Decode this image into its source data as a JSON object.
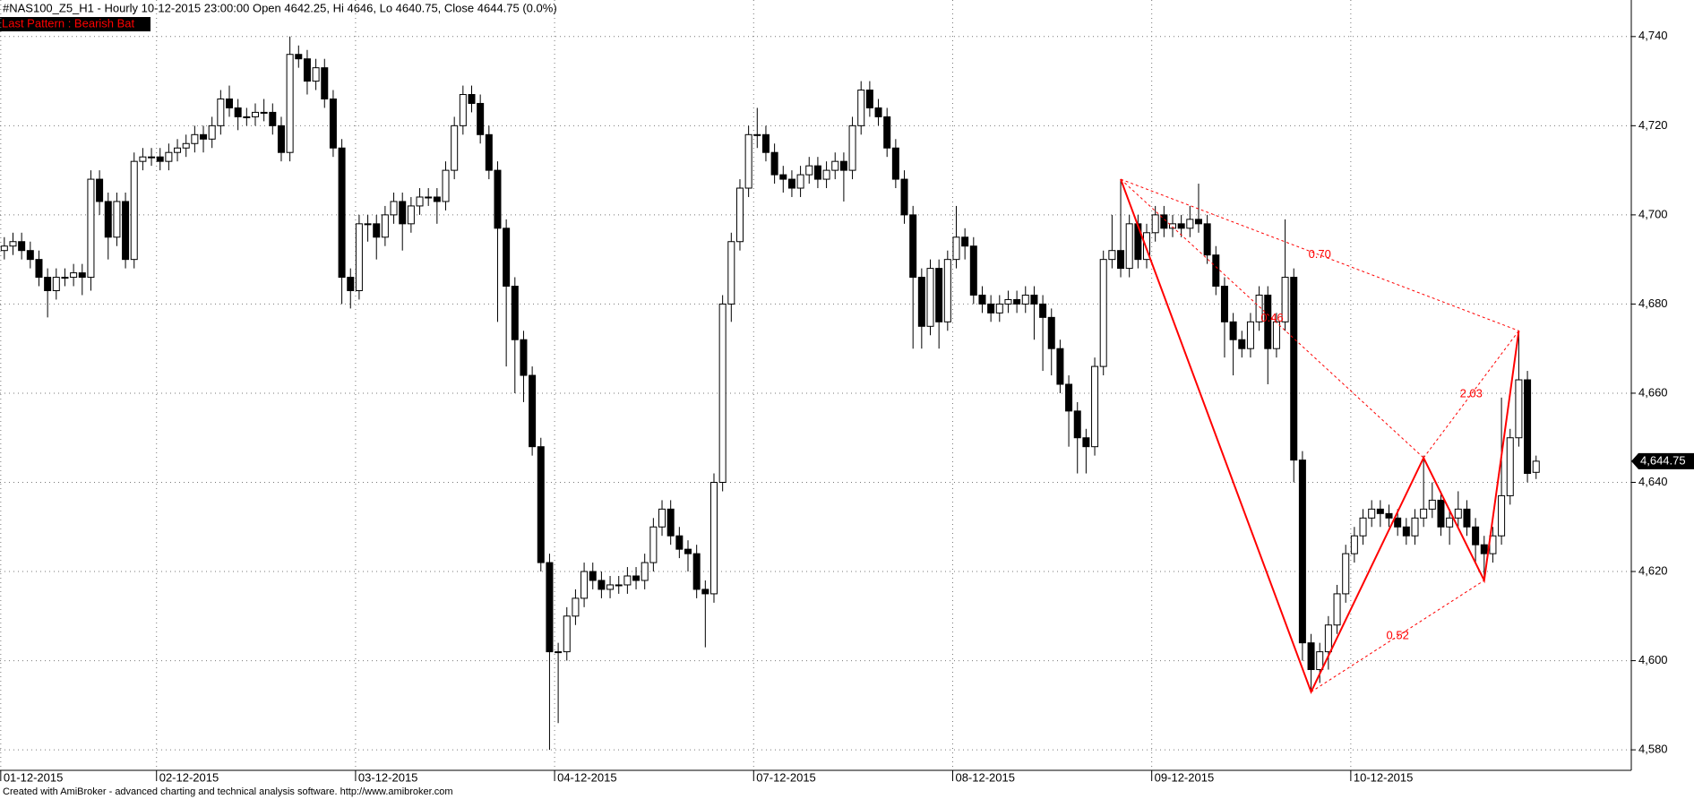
{
  "chart_data": {
    "type": "candlestick",
    "title": "#NAS100_Z5_H1 - Hourly 10-12-2015 23:00:00 Open 4642.25, Hi 4646, Lo 4640.75, Close 4644.75 (0.0%)",
    "pattern_label": "Last Pattern : Bearish Bat",
    "footer": "Created with AmiBroker - advanced charting and technical analysis software. http://www.amibroker.com",
    "open": [
      4692,
      4693,
      4694,
      4692,
      4690,
      4686,
      4683,
      4686,
      4686,
      4687,
      4686,
      4708,
      4703,
      4695,
      4703,
      4690,
      4712,
      4713,
      4713,
      4712,
      4714,
      4715,
      4716,
      4718,
      4717,
      4720,
      4726,
      4724,
      4722,
      4722,
      4723,
      4723,
      4720,
      4714,
      4736,
      4735,
      4730,
      4733,
      4726,
      4715,
      4686,
      4683,
      4698,
      4698,
      4695,
      4700,
      4703,
      4698,
      4702,
      4704,
      4704,
      4703,
      4710,
      4720,
      4727,
      4725,
      4718,
      4710,
      4697,
      4684,
      4672,
      4664,
      4648,
      4622,
      4602,
      4602,
      4610,
      4614,
      4620,
      4618,
      4616,
      4617,
      4617,
      4619,
      4618,
      4622,
      4630,
      4634,
      4628,
      4625,
      4624,
      4616,
      4615,
      4640,
      4680,
      4694,
      4706,
      4718,
      4718,
      4714,
      4709,
      4708,
      4706,
      4709,
      4711,
      4708,
      4710,
      4712,
      4710,
      4720,
      4728,
      4724,
      4722,
      4715,
      4708,
      4700,
      4686,
      4675,
      4688,
      4676,
      4690,
      4695,
      4693,
      4682,
      4680,
      4678,
      4680,
      4681,
      4680,
      4682,
      4680,
      4677,
      4670,
      4662,
      4656,
      4650,
      4648,
      4666,
      4690,
      4692,
      4688,
      4698,
      4690,
      4696,
      4700,
      4697,
      4698,
      4697,
      4699,
      4698,
      4691,
      4684,
      4676,
      4672,
      4670,
      4676,
      4682,
      4670,
      4676,
      4686,
      4645,
      4604,
      4598,
      4602,
      4608,
      4615,
      4624,
      4628,
      4632,
      4634,
      4633,
      4632,
      4630,
      4628,
      4632,
      4634,
      4636,
      4630,
      4632,
      4634,
      4630,
      4626,
      4624,
      4628,
      4637,
      4650,
      4663,
      4642.25
    ],
    "high": [
      4695,
      4696,
      4696,
      4694,
      4692,
      4688,
      4688,
      4688,
      4689,
      4689,
      4710,
      4710,
      4705,
      4705,
      4705,
      4714,
      4715,
      4715,
      4715,
      4716,
      4717,
      4718,
      4720,
      4720,
      4722,
      4728,
      4729,
      4726,
      4724,
      4725,
      4726,
      4725,
      4722,
      4740,
      4738,
      4737,
      4735,
      4735,
      4728,
      4717,
      4688,
      4700,
      4700,
      4700,
      4702,
      4705,
      4705,
      4704,
      4706,
      4706,
      4706,
      4712,
      4722,
      4729,
      4729,
      4727,
      4720,
      4712,
      4699,
      4686,
      4674,
      4666,
      4650,
      4624,
      4604,
      4612,
      4616,
      4622,
      4622,
      4620,
      4619,
      4619,
      4621,
      4621,
      4624,
      4632,
      4636,
      4636,
      4630,
      4627,
      4626,
      4618,
      4642,
      4682,
      4696,
      4708,
      4720,
      4724,
      4720,
      4716,
      4711,
      4710,
      4711,
      4713,
      4713,
      4712,
      4714,
      4714,
      4722,
      4730,
      4730,
      4726,
      4724,
      4717,
      4710,
      4702,
      4688,
      4690,
      4690,
      4692,
      4702,
      4697,
      4695,
      4684,
      4682,
      4682,
      4683,
      4683,
      4684,
      4684,
      4682,
      4679,
      4672,
      4664,
      4658,
      4652,
      4668,
      4692,
      4700,
      4708,
      4700,
      4700,
      4698,
      4702,
      4702,
      4700,
      4700,
      4702,
      4707,
      4700,
      4693,
      4686,
      4678,
      4674,
      4678,
      4684,
      4684,
      4678,
      4699,
      4688,
      4647,
      4606,
      4604,
      4610,
      4617,
      4626,
      4630,
      4634,
      4636,
      4636,
      4635,
      4634,
      4632,
      4634,
      4646,
      4640,
      4638,
      4634,
      4638,
      4636,
      4632,
      4628,
      4630,
      4659,
      4652,
      4674,
      4665,
      4646
    ],
    "low": [
      4690,
      4691,
      4690,
      4688,
      4684,
      4677,
      4681,
      4684,
      4684,
      4682,
      4683,
      4700,
      4690,
      4693,
      4688,
      4688,
      4710,
      4711,
      4710,
      4710,
      4712,
      4713,
      4714,
      4714,
      4715,
      4718,
      4722,
      4719,
      4720,
      4720,
      4721,
      4718,
      4712,
      4712,
      4733,
      4727,
      4728,
      4724,
      4713,
      4680,
      4679,
      4681,
      4694,
      4690,
      4693,
      4698,
      4692,
      4696,
      4700,
      4702,
      4698,
      4701,
      4708,
      4718,
      4723,
      4716,
      4708,
      4676,
      4666,
      4660,
      4658,
      4646,
      4620,
      4580,
      4586,
      4600,
      4608,
      4612,
      4616,
      4614,
      4614,
      4615,
      4615,
      4616,
      4616,
      4620,
      4628,
      4626,
      4623,
      4620,
      4614,
      4603,
      4613,
      4638,
      4676,
      4692,
      4704,
      4715,
      4712,
      4707,
      4705,
      4704,
      4704,
      4707,
      4706,
      4706,
      4708,
      4703,
      4708,
      4718,
      4722,
      4720,
      4713,
      4706,
      4698,
      4670,
      4670,
      4673,
      4670,
      4674,
      4688,
      4690,
      4680,
      4678,
      4676,
      4676,
      4678,
      4678,
      4678,
      4672,
      4665,
      4664,
      4660,
      4648,
      4642,
      4642,
      4646,
      4664,
      4688,
      4686,
      4686,
      4688,
      4688,
      4694,
      4695,
      4695,
      4695,
      4695,
      4696,
      4689,
      4682,
      4668,
      4664,
      4668,
      4668,
      4674,
      4662,
      4668,
      4674,
      4640,
      4600,
      4593,
      4595,
      4598,
      4606,
      4613,
      4622,
      4626,
      4630,
      4630,
      4630,
      4628,
      4626,
      4626,
      4630,
      4632,
      4628,
      4626,
      4630,
      4628,
      4622,
      4618,
      4622,
      4626,
      4635,
      4648,
      4640,
      4640.75
    ],
    "close": [
      4693,
      4694,
      4692,
      4690,
      4686,
      4683,
      4686,
      4686,
      4687,
      4686,
      4708,
      4703,
      4695,
      4703,
      4690,
      4712,
      4713,
      4713,
      4712,
      4714,
      4715,
      4716,
      4718,
      4717,
      4720,
      4726,
      4724,
      4722,
      4722,
      4723,
      4723,
      4720,
      4714,
      4736,
      4735,
      4730,
      4733,
      4726,
      4715,
      4686,
      4683,
      4698,
      4698,
      4695,
      4700,
      4703,
      4698,
      4702,
      4704,
      4704,
      4703,
      4710,
      4720,
      4727,
      4725,
      4718,
      4710,
      4697,
      4684,
      4672,
      4664,
      4648,
      4622,
      4602,
      4602,
      4610,
      4614,
      4620,
      4618,
      4616,
      4617,
      4617,
      4619,
      4618,
      4622,
      4630,
      4634,
      4628,
      4625,
      4624,
      4616,
      4615,
      4640,
      4680,
      4694,
      4706,
      4718,
      4718,
      4714,
      4709,
      4708,
      4706,
      4709,
      4711,
      4708,
      4710,
      4712,
      4710,
      4720,
      4728,
      4724,
      4722,
      4715,
      4708,
      4700,
      4686,
      4675,
      4688,
      4676,
      4690,
      4695,
      4693,
      4682,
      4680,
      4678,
      4680,
      4681,
      4680,
      4682,
      4680,
      4677,
      4670,
      4662,
      4656,
      4650,
      4648,
      4666,
      4690,
      4692,
      4688,
      4698,
      4690,
      4696,
      4700,
      4697,
      4698,
      4697,
      4699,
      4698,
      4691,
      4684,
      4676,
      4672,
      4670,
      4676,
      4682,
      4670,
      4676,
      4686,
      4645,
      4604,
      4598,
      4602,
      4608,
      4615,
      4624,
      4628,
      4632,
      4634,
      4633,
      4632,
      4630,
      4628,
      4632,
      4634,
      4636,
      4630,
      4632,
      4634,
      4630,
      4626,
      4624,
      4628,
      4637,
      4650,
      4663,
      4642,
      4644.75
    ],
    "xlim": [
      -0.5,
      188
    ],
    "xticks": [
      {
        "value": 0,
        "label": "01-12-2015"
      },
      {
        "value": 18,
        "label": "02-12-2015"
      },
      {
        "value": 41,
        "label": "03-12-2015"
      },
      {
        "value": 64,
        "label": "04-12-2015"
      },
      {
        "value": 87,
        "label": "07-12-2015"
      },
      {
        "value": 110,
        "label": "08-12-2015"
      },
      {
        "value": 133,
        "label": "09-12-2015"
      },
      {
        "value": 156,
        "label": "10-12-2015"
      }
    ],
    "ylim": [
      4575.4,
      4748.2
    ],
    "yticks": [
      {
        "value": 4580,
        "label": "4,580"
      },
      {
        "value": 4600,
        "label": "4,600"
      },
      {
        "value": 4620,
        "label": "4,620"
      },
      {
        "value": 4640,
        "label": "4,640"
      },
      {
        "value": 4660,
        "label": "4,660"
      },
      {
        "value": 4680,
        "label": "4,680"
      },
      {
        "value": 4700,
        "label": "4,700"
      },
      {
        "value": 4720,
        "label": "4,720"
      },
      {
        "value": 4740,
        "label": "4,740"
      }
    ],
    "grid": true,
    "last_price": {
      "value": 4644.75,
      "label": "4,644.75"
    },
    "pattern_color": "#ff0000",
    "pattern_x": [
      129,
      151,
      164,
      171,
      175
    ],
    "pattern_y": [
      4708,
      4593,
      4645.5,
      4618,
      4674
    ],
    "ratios": [
      {
        "value": 0.7,
        "label": "0.70"
      },
      {
        "value": 0.46,
        "label": "0.46"
      },
      {
        "value": 0.52,
        "label": "0.52"
      },
      {
        "value": 2.03,
        "label": "2.03"
      }
    ]
  }
}
